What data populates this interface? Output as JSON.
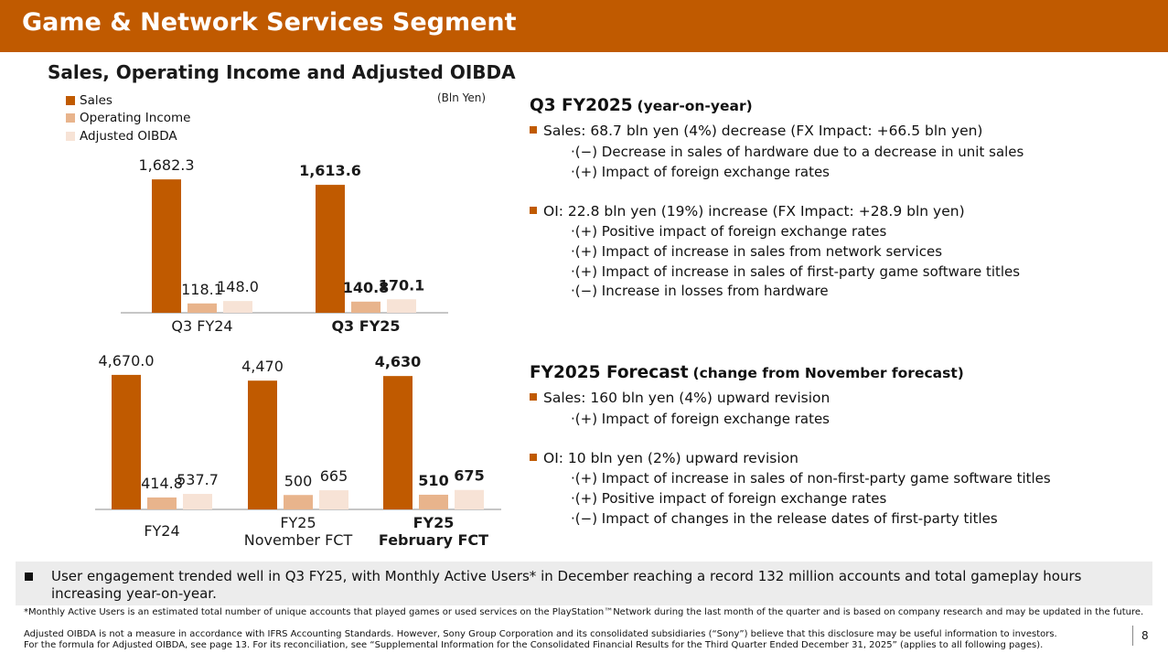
{
  "header": {
    "title": "Game & Network Services Segment"
  },
  "chart_title": "Sales, Operating Income and Adjusted OIBDA",
  "unit": "(Bln Yen)",
  "colors": {
    "brand": "#c05a00",
    "sales": "#c05a00",
    "oi": "#e8b48c",
    "oibda": "#f7e3d6"
  },
  "chart_data": [
    {
      "type": "bar",
      "categories": [
        "Q3 FY24",
        "Q3 FY25"
      ],
      "series": [
        {
          "name": "Sales",
          "values": [
            1682.3,
            1613.6
          ]
        },
        {
          "name": "Operating Income",
          "values": [
            118.1,
            140.8
          ]
        },
        {
          "name": "Adjusted OIBDA",
          "values": [
            148.0,
            170.1
          ]
        }
      ],
      "labels": [
        [
          "1,682.3",
          "118.1",
          "148.0"
        ],
        [
          "1,613.6",
          "140.8",
          "170.1"
        ]
      ],
      "bold_category": [
        false,
        true
      ],
      "legend": "top-left"
    },
    {
      "type": "bar",
      "categories": [
        "FY24",
        "FY25\nNovember FCT",
        "FY25\nFebruary FCT"
      ],
      "series": [
        {
          "name": "Sales",
          "values": [
            4670.0,
            4470,
            4630
          ]
        },
        {
          "name": "Operating Income",
          "values": [
            414.8,
            500,
            510
          ]
        },
        {
          "name": "Adjusted OIBDA",
          "values": [
            537.7,
            665,
            675
          ]
        }
      ],
      "labels": [
        [
          "4,670.0",
          "414.8",
          "537.7"
        ],
        [
          "4,470",
          "500",
          "665"
        ],
        [
          "4,630",
          "510",
          "675"
        ]
      ],
      "bold_category": [
        false,
        false,
        true
      ]
    }
  ],
  "q3": {
    "title": "Q3 FY2025",
    "subtitle": "(year-on-year)",
    "sales": "Sales: 68.7 bln yen (4%) decrease (FX Impact: +66.5 bln yen)",
    "sales_points": [
      "·(−) Decrease in sales of hardware due to a decrease in unit sales",
      "·(+) Impact of foreign exchange rates"
    ],
    "oi": "OI: 22.8 bln yen (19%) increase (FX Impact: +28.9 bln yen)",
    "oi_points": [
      "·(+) Positive impact of foreign exchange rates",
      "·(+) Impact of increase in sales from network services",
      "·(+) Impact of increase in sales of first-party game software titles",
      "·(−) Increase in losses from hardware"
    ]
  },
  "fy": {
    "title": "FY2025 Forecast",
    "subtitle": "(change from November forecast)",
    "sales": "Sales: 160 bln yen (4%) upward revision",
    "sales_points": [
      "·(+) Impact of foreign exchange rates"
    ],
    "oi": "OI: 10 bln yen (2%) upward revision",
    "oi_points": [
      "·(+) Impact of increase in sales of non-first-party game software titles",
      "·(+) Positive impact of foreign exchange rates",
      "·(−) Impact of changes in the release dates of first-party titles"
    ]
  },
  "note": "User engagement trended well in Q3 FY25, with Monthly Active Users* in December reaching a record 132 million accounts and total gameplay hours increasing year-on-year.",
  "footnote_mau": "*Monthly Active Users is an estimated total number of unique accounts that played games or used services on the PlayStation™Network during the last month of the quarter and is based on company research and may be updated in the future.",
  "footnote_oibda_1": "Adjusted OIBDA is not a measure in accordance with IFRS Accounting Standards. However, Sony Group Corporation and its consolidated subsidiaries (“Sony”) believe that this disclosure may be useful information to investors.",
  "footnote_oibda_2": "For the formula for Adjusted OIBDA, see page 13. For its reconciliation, see “Supplemental Information for the Consolidated Financial Results for the Third Quarter Ended December 31, 2025” (applies to all following pages).",
  "page_number": "8"
}
